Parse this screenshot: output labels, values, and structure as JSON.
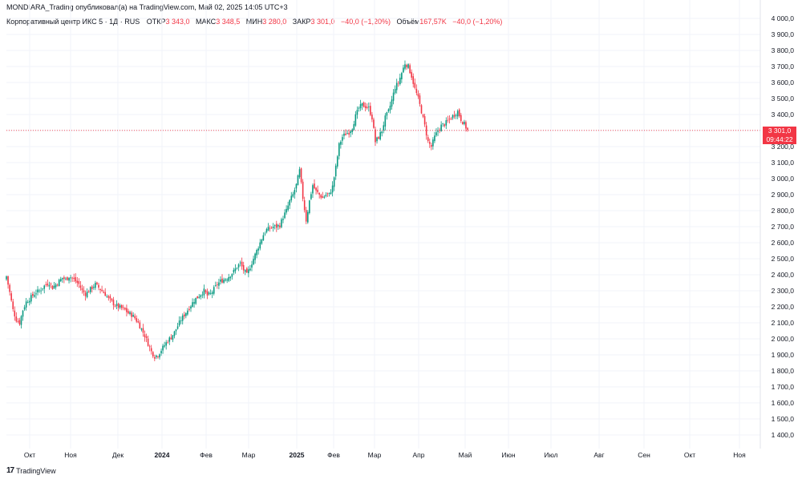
{
  "header": {
    "publisher_line": "MONDIARA_Trading опубликовал(а) на TradingView.com, Май 02, 2025 14:05 UTC+3"
  },
  "legend": {
    "symbol": "Корпоративный центр ИКС 5 · 1Д · RUS",
    "open_label": "ОТКР",
    "open_value": "3 343,0",
    "high_label": "МАКС",
    "high_value": "3 348,5",
    "low_label": "МИН",
    "low_value": "3 280,0",
    "close_label": "ЗАКР",
    "close_value": "3 301,0",
    "change_value": "−40,0 (−1,20%)",
    "volume_label": "Объём",
    "volume_value": "167,57K",
    "volume_change": "−40,0 (−1,20%)"
  },
  "price_tag": {
    "price": "3 301,0",
    "countdown": "09:44:22"
  },
  "branding": {
    "logo_text": "TradingView",
    "logo_mark": "17"
  },
  "colors": {
    "up": "#089981",
    "down": "#f23645",
    "grid": "#f0f3fa",
    "axis_text": "#131722"
  },
  "chart_data": {
    "type": "candlestick",
    "title": "Корпоративный центр ИКС 5 · 1Д · RUS",
    "ylim": [
      1300,
      4000
    ],
    "y_ticks": [
      "4 000,0",
      "3 900,0",
      "3 800,0",
      "3 700,0",
      "3 600,0",
      "3 500,0",
      "3 400,0",
      "3 300,0",
      "3 200,0",
      "3 100,0",
      "3 000,0",
      "2 900,0",
      "2 800,0",
      "2 700,0",
      "2 600,0",
      "2 500,0",
      "2 400,0",
      "2 300,0",
      "2 200,0",
      "2 100,0",
      "2 000,0",
      "1 900,0",
      "1 800,0",
      "1 700,0",
      "1 600,0",
      "1 500,0",
      "1 400,0"
    ],
    "x_ticks": [
      "Окт",
      "Ноя",
      "Дек",
      "2024",
      "Фев",
      "Мар",
      "2025",
      "Фев",
      "Мар",
      "Апр",
      "Май",
      "Июн",
      "Июл",
      "Авг",
      "Сен",
      "Окт",
      "Ноя"
    ],
    "last_price": 3301.0,
    "close_path": [
      [
        0,
        2390
      ],
      [
        2,
        2290
      ],
      [
        4,
        2180
      ],
      [
        6,
        2120
      ],
      [
        8,
        2100
      ],
      [
        10,
        2180
      ],
      [
        12,
        2230
      ],
      [
        14,
        2250
      ],
      [
        16,
        2270
      ],
      [
        18,
        2290
      ],
      [
        20,
        2300
      ],
      [
        22,
        2320
      ],
      [
        24,
        2340
      ],
      [
        26,
        2350
      ],
      [
        28,
        2320
      ],
      [
        30,
        2340
      ],
      [
        32,
        2360
      ],
      [
        34,
        2380
      ],
      [
        36,
        2370
      ],
      [
        38,
        2390
      ],
      [
        40,
        2380
      ],
      [
        42,
        2360
      ],
      [
        44,
        2340
      ],
      [
        46,
        2300
      ],
      [
        48,
        2280
      ],
      [
        50,
        2300
      ],
      [
        52,
        2320
      ],
      [
        54,
        2340
      ],
      [
        56,
        2320
      ],
      [
        58,
        2300
      ],
      [
        60,
        2280
      ],
      [
        62,
        2250
      ],
      [
        64,
        2230
      ],
      [
        66,
        2210
      ],
      [
        68,
        2200
      ],
      [
        70,
        2190
      ],
      [
        72,
        2180
      ],
      [
        74,
        2160
      ],
      [
        76,
        2150
      ],
      [
        78,
        2130
      ],
      [
        80,
        2100
      ],
      [
        82,
        2060
      ],
      [
        84,
        2020
      ],
      [
        86,
        1970
      ],
      [
        88,
        1920
      ],
      [
        90,
        1890
      ],
      [
        92,
        1900
      ],
      [
        94,
        1930
      ],
      [
        96,
        1960
      ],
      [
        98,
        1990
      ],
      [
        100,
        2010
      ],
      [
        102,
        2040
      ],
      [
        104,
        2080
      ],
      [
        106,
        2120
      ],
      [
        108,
        2150
      ],
      [
        110,
        2180
      ],
      [
        112,
        2210
      ],
      [
        114,
        2240
      ],
      [
        116,
        2260
      ],
      [
        118,
        2280
      ],
      [
        120,
        2300
      ],
      [
        122,
        2270
      ],
      [
        124,
        2280
      ],
      [
        126,
        2310
      ],
      [
        128,
        2340
      ],
      [
        130,
        2360
      ],
      [
        132,
        2370
      ],
      [
        134,
        2380
      ],
      [
        136,
        2400
      ],
      [
        138,
        2420
      ],
      [
        140,
        2450
      ],
      [
        142,
        2470
      ],
      [
        144,
        2430
      ],
      [
        146,
        2400
      ],
      [
        148,
        2450
      ],
      [
        150,
        2500
      ],
      [
        152,
        2550
      ],
      [
        154,
        2600
      ],
      [
        156,
        2650
      ],
      [
        158,
        2680
      ],
      [
        160,
        2690
      ],
      [
        162,
        2700
      ],
      [
        164,
        2700
      ],
      [
        166,
        2710
      ],
      [
        168,
        2760
      ],
      [
        170,
        2800
      ],
      [
        172,
        2860
      ],
      [
        174,
        2900
      ],
      [
        176,
        2960
      ],
      [
        178,
        3050
      ],
      [
        180,
        2880
      ],
      [
        182,
        2740
      ],
      [
        184,
        2860
      ],
      [
        186,
        2960
      ],
      [
        188,
        2920
      ],
      [
        190,
        2900
      ],
      [
        192,
        2880
      ],
      [
        194,
        2900
      ],
      [
        196,
        2900
      ],
      [
        198,
        2950
      ],
      [
        200,
        3070
      ],
      [
        202,
        3210
      ],
      [
        204,
        3260
      ],
      [
        206,
        3280
      ],
      [
        208,
        3290
      ],
      [
        210,
        3320
      ],
      [
        212,
        3390
      ],
      [
        214,
        3440
      ],
      [
        216,
        3460
      ],
      [
        218,
        3450
      ],
      [
        220,
        3440
      ],
      [
        222,
        3380
      ],
      [
        224,
        3230
      ],
      [
        226,
        3260
      ],
      [
        228,
        3300
      ],
      [
        230,
        3380
      ],
      [
        232,
        3420
      ],
      [
        234,
        3490
      ],
      [
        236,
        3570
      ],
      [
        238,
        3600
      ],
      [
        240,
        3660
      ],
      [
        242,
        3720
      ],
      [
        244,
        3700
      ],
      [
        246,
        3640
      ],
      [
        248,
        3560
      ],
      [
        250,
        3500
      ],
      [
        252,
        3420
      ],
      [
        254,
        3330
      ],
      [
        256,
        3230
      ],
      [
        258,
        3200
      ],
      [
        260,
        3260
      ],
      [
        262,
        3300
      ],
      [
        264,
        3330
      ],
      [
        266,
        3340
      ],
      [
        268,
        3360
      ],
      [
        270,
        3380
      ],
      [
        272,
        3400
      ],
      [
        274,
        3420
      ],
      [
        276,
        3370
      ],
      [
        278,
        3340
      ],
      [
        280,
        3301
      ]
    ]
  }
}
